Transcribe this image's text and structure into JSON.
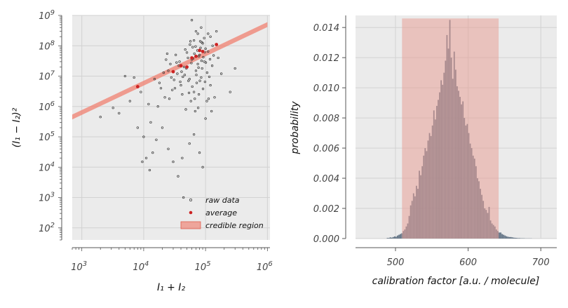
{
  "chart_data": [
    {
      "type": "scatter",
      "xlabel": "I₁ + I₂",
      "ylabel": "(I₁ − I₂)²",
      "xscale": "log",
      "yscale": "log",
      "xlim": [
        700,
        1100000
      ],
      "ylim": [
        40,
        1000000000
      ],
      "x_ticks": [
        {
          "value": 1000,
          "mantissa": "10",
          "exp": "3"
        },
        {
          "value": 10000,
          "mantissa": "10",
          "exp": "4"
        },
        {
          "value": 100000,
          "mantissa": "10",
          "exp": "5"
        },
        {
          "value": 1000000,
          "mantissa": "10",
          "exp": "6"
        }
      ],
      "y_ticks": [
        {
          "value": 100,
          "mantissa": "10",
          "exp": "2"
        },
        {
          "value": 1000,
          "mantissa": "10",
          "exp": "3"
        },
        {
          "value": 10000,
          "mantissa": "10",
          "exp": "4"
        },
        {
          "value": 100000,
          "mantissa": "10",
          "exp": "5"
        },
        {
          "value": 1000000,
          "mantissa": "10",
          "exp": "6"
        },
        {
          "value": 10000000,
          "mantissa": "10",
          "exp": "7"
        },
        {
          "value": 100000000,
          "mantissa": "10",
          "exp": "8"
        },
        {
          "value": 1000000000,
          "mantissa": "10",
          "exp": "9"
        }
      ],
      "grid": true,
      "legend_position": "lower-right",
      "series": [
        {
          "name": "raw data",
          "kind": "scatter",
          "color": "#333333",
          "points": [
            [
              45000,
              20000000
            ],
            [
              60000,
              35000000
            ],
            [
              80000,
              50000000
            ],
            [
              55000,
              8000000
            ],
            [
              70000,
              15000000
            ],
            [
              90000,
              120000000
            ],
            [
              40000,
              5000000
            ],
            [
              100000,
              80000000
            ],
            [
              65000,
              3000000
            ],
            [
              75000,
              25000000
            ],
            [
              50000,
              60000000
            ],
            [
              85000,
              9000000
            ],
            [
              120000,
              200000000
            ],
            [
              35000,
              12000000
            ],
            [
              95000,
              30000000
            ],
            [
              58000,
              1500000
            ],
            [
              68000,
              700000
            ],
            [
              78000,
              45000000
            ],
            [
              88000,
              18000000
            ],
            [
              110000,
              65000000
            ],
            [
              52000,
              40000000
            ],
            [
              62000,
              90000000
            ],
            [
              72000,
              6000000
            ],
            [
              82000,
              140000000
            ],
            [
              42000,
              2500000
            ],
            [
              130000,
              100000000
            ],
            [
              150000,
              300000000
            ],
            [
              48000,
              800000
            ],
            [
              38000,
              30000000
            ],
            [
              28000,
              9000000
            ],
            [
              32000,
              4000000
            ],
            [
              25000,
              15000000
            ],
            [
              22000,
              2000000
            ],
            [
              18000,
              6000000
            ],
            [
              15000,
              8000000
            ],
            [
              12000,
              1200000
            ],
            [
              9000,
              3000000
            ],
            [
              7000,
              9000000
            ],
            [
              6000,
              1500000
            ],
            [
              5000,
              10000000
            ],
            [
              4000,
              600000
            ],
            [
              8000,
              200000
            ],
            [
              10000,
              100000
            ],
            [
              11000,
              20000
            ],
            [
              12500,
              8000
            ],
            [
              14000,
              30000
            ],
            [
              16000,
              80000
            ],
            [
              20000,
              200000
            ],
            [
              25000,
              40000
            ],
            [
              30000,
              15000
            ],
            [
              36000,
              5000
            ],
            [
              42000,
              20000
            ],
            [
              55000,
              60000
            ],
            [
              65000,
              120000
            ],
            [
              80000,
              30000
            ],
            [
              90000,
              10000
            ],
            [
              100000,
              400000
            ],
            [
              120000,
              5000000
            ],
            [
              140000,
              2000000
            ],
            [
              160000,
              40000000
            ],
            [
              180000,
              12000000
            ],
            [
              250000,
              3000000
            ],
            [
              300000,
              18000000
            ],
            [
              110000,
              250000000
            ],
            [
              95000,
              180000000
            ],
            [
              85000,
              400000000
            ],
            [
              75000,
              250000000
            ],
            [
              65000,
              150000000
            ],
            [
              56000,
              110000000
            ],
            [
              47000,
              75000000
            ],
            [
              33000,
              50000000
            ],
            [
              27000,
              25000000
            ],
            [
              23000,
              35000000
            ],
            [
              19000,
              4000000
            ],
            [
              17000,
              1000000
            ],
            [
              13000,
              300000
            ],
            [
              3200,
              900000
            ],
            [
              2000,
              450000
            ],
            [
              9500,
              15000
            ],
            [
              44000,
              1000
            ],
            [
              125000,
              700000
            ],
            [
              105000,
              1500000
            ],
            [
              78000,
              2500000
            ],
            [
              61000,
              4500000
            ],
            [
              53000,
              7000000
            ],
            [
              46000,
              11000000
            ],
            [
              41000,
              14000000
            ],
            [
              37000,
              22000000
            ],
            [
              34000,
              28000000
            ],
            [
              31000,
              7500000
            ],
            [
              29000,
              3500000
            ],
            [
              26000,
              1800000
            ],
            [
              24000,
              55000000
            ],
            [
              21000,
              13000000
            ],
            [
              66000,
              55000000
            ],
            [
              74000,
              70000000
            ],
            [
              83000,
              85000000
            ],
            [
              92000,
              42000000
            ],
            [
              101000,
              28000000
            ],
            [
              115000,
              9500000
            ],
            [
              135000,
              48000000
            ],
            [
              87000,
              130000000
            ],
            [
              69000,
              95000000
            ],
            [
              57000,
              140000000
            ],
            [
              49000,
              18000000
            ],
            [
              43000,
              9500000
            ],
            [
              39000,
              6500000
            ],
            [
              59000,
              27000000
            ],
            [
              63000,
              38000000
            ],
            [
              71000,
              11000000
            ],
            [
              77000,
              19000000
            ],
            [
              81000,
              7000000
            ],
            [
              97000,
              62000000
            ],
            [
              106000,
              13000000
            ],
            [
              118000,
              36000000
            ],
            [
              60000,
              700000000
            ],
            [
              70000,
              300000000
            ],
            [
              86000,
              32000000
            ],
            [
              54000,
              2800000
            ],
            [
              67000,
              1800000
            ],
            [
              76000,
              900000
            ],
            [
              91000,
              3800000
            ],
            [
              98000,
              6500000
            ],
            [
              112000,
              1800000
            ],
            [
              128000,
              22000000
            ]
          ]
        },
        {
          "name": "average",
          "kind": "scatter",
          "color": "#cc2222",
          "points": [
            [
              8000,
              4500000
            ],
            [
              30000,
              14000000
            ],
            [
              40000,
              22000000
            ],
            [
              50000,
              20000000
            ],
            [
              60000,
              40000000
            ],
            [
              70000,
              45000000
            ],
            [
              80000,
              70000000
            ],
            [
              90000,
              65000000
            ],
            [
              150000,
              110000000
            ]
          ]
        },
        {
          "name": "credible region",
          "kind": "band",
          "color": "#f08070",
          "line": {
            "x0": 700,
            "y0": 450000,
            "x1": 1000000,
            "y1": 500000000
          },
          "width_dex": 0.16
        }
      ]
    },
    {
      "type": "bar",
      "xlabel": "calibration factor [a.u. / molecule]",
      "ylabel": "probability",
      "xlim": [
        445,
        722
      ],
      "ylim": [
        0,
        0.0148
      ],
      "x_ticks": [
        500,
        600,
        700
      ],
      "y_ticks": [
        "0.000",
        "0.002",
        "0.004",
        "0.006",
        "0.008",
        "0.010",
        "0.012",
        "0.014"
      ],
      "grid": true,
      "bar_color": "#5c6e80",
      "bin_width": 2,
      "credible_region": {
        "x0": 509,
        "x1": 642,
        "color": "#e8a098"
      },
      "peak_center": 574,
      "values": [
        4e-05,
        4e-05,
        8e-05,
        6e-05,
        0.0001,
        0.00014,
        0.00012,
        0.0002,
        0.00025,
        0.0003,
        0.00035,
        0.0005,
        0.0006,
        0.0008,
        0.001,
        0.0015,
        0.0022,
        0.0025,
        0.003,
        0.0028,
        0.0035,
        0.0033,
        0.0045,
        0.0042,
        0.0048,
        0.0055,
        0.006,
        0.0058,
        0.0065,
        0.007,
        0.0068,
        0.0075,
        0.0085,
        0.0079,
        0.0088,
        0.0092,
        0.0097,
        0.0105,
        0.0102,
        0.011,
        0.0118,
        0.0135,
        0.0126,
        0.0145,
        0.012,
        0.0106,
        0.0124,
        0.0112,
        0.0101,
        0.0098,
        0.0094,
        0.0089,
        0.0091,
        0.008,
        0.0075,
        0.0076,
        0.007,
        0.0063,
        0.006,
        0.0055,
        0.0053,
        0.0048,
        0.004,
        0.0038,
        0.0033,
        0.0029,
        0.0025,
        0.002,
        0.0019,
        0.0017,
        0.0021,
        0.0012,
        0.001,
        0.0009,
        0.0008,
        0.0006,
        0.0005,
        0.0004,
        0.0004,
        0.0003,
        0.00025,
        0.0002,
        0.00015,
        0.00012,
        0.0001,
        0.0001,
        8e-05,
        6e-05,
        5e-05,
        4e-05,
        3e-05,
        3e-05,
        2e-05,
        2e-05,
        2e-05,
        1e-05,
        1e-05,
        1e-05,
        1e-05,
        1e-05
      ]
    }
  ]
}
